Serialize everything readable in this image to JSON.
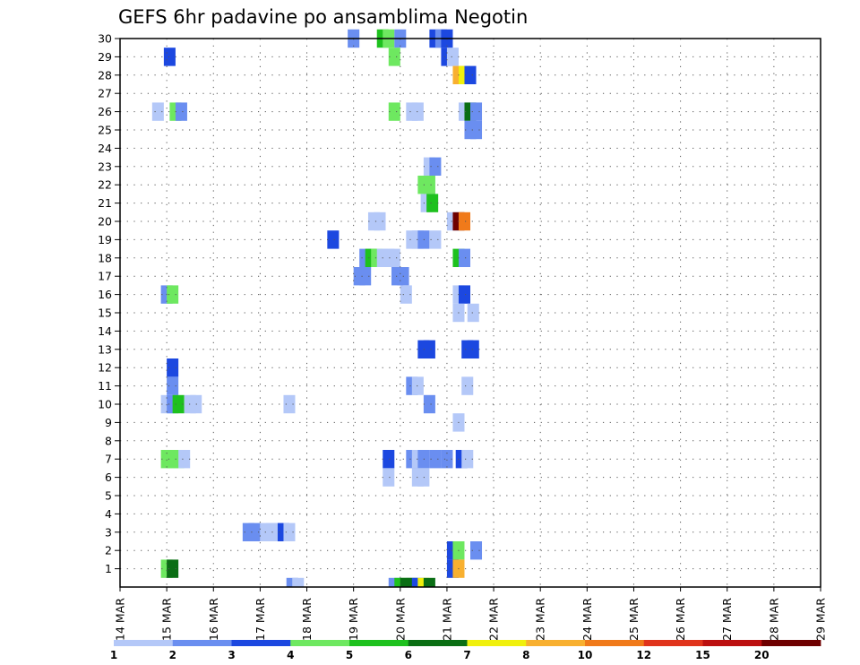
{
  "chart_data": {
    "type": "heatmap",
    "title": "GEFS 6hr padavine po ansamblima Negotin",
    "xlabel": "",
    "ylabel": "",
    "x_tick_labels": [
      "14 MAR",
      "15 MAR",
      "16 MAR",
      "17 MAR",
      "18 MAR",
      "19 MAR",
      "20 MAR",
      "21 MAR",
      "22 MAR",
      "23 MAR",
      "24 MAR",
      "25 MAR",
      "26 MAR",
      "27 MAR",
      "28 MAR",
      "29 MAR"
    ],
    "xlim_days": [
      0,
      15
    ],
    "y_tick_labels": [
      "1",
      "2",
      "3",
      "4",
      "5",
      "6",
      "7",
      "8",
      "9",
      "10",
      "11",
      "12",
      "13",
      "14",
      "15",
      "16",
      "17",
      "18",
      "19",
      "20",
      "21",
      "22",
      "23",
      "24",
      "25",
      "26",
      "27",
      "28",
      "29",
      "30"
    ],
    "ylim_members": [
      0,
      30
    ],
    "time_step_hours": 6,
    "grid": true,
    "legend_placement": "bottom",
    "legend_labels": [
      "1",
      "2",
      "3",
      "4",
      "5",
      "6",
      "7",
      "8",
      "10",
      "12",
      "15",
      "20"
    ],
    "color_levels": [
      {
        "level": 1,
        "color": "#b4c8f8"
      },
      {
        "level": 2,
        "color": "#6a8ef0"
      },
      {
        "level": 3,
        "color": "#1c48e0"
      },
      {
        "level": 4,
        "color": "#6ee860"
      },
      {
        "level": 5,
        "color": "#1ec11e"
      },
      {
        "level": 6,
        "color": "#0a6e14"
      },
      {
        "level": 7,
        "color": "#f0f00c"
      },
      {
        "level": 8,
        "color": "#f8b030"
      },
      {
        "level": 9,
        "color": "#f07a1a"
      },
      {
        "level": 10,
        "color": "#e0341c"
      },
      {
        "level": 11,
        "color": "#bc1010"
      },
      {
        "level": 12,
        "color": "#6e0000"
      }
    ],
    "cells": [
      {
        "m": 30,
        "t": [
          19.5
        ],
        "c": 2
      },
      {
        "m": 30,
        "t": [
          22
        ],
        "c": 5
      },
      {
        "m": 30,
        "t": [
          22.5
        ],
        "c": 4
      },
      {
        "m": 30,
        "t": [
          23.5
        ],
        "c": 2
      },
      {
        "m": 30,
        "t": [
          26.5
        ],
        "c": 3
      },
      {
        "m": 30,
        "t": [
          27
        ],
        "c": 2
      },
      {
        "m": 30,
        "t": [
          27.5
        ],
        "c": 3
      },
      {
        "m": 29,
        "t": [
          3.75
        ],
        "c": 3
      },
      {
        "m": 29,
        "t": [
          23
        ],
        "c": 4
      },
      {
        "m": 29,
        "t": [
          27.5
        ],
        "c": 3
      },
      {
        "m": 29,
        "t": [
          28
        ],
        "c": 1
      },
      {
        "m": 28,
        "t": [
          28.5
        ],
        "c": 8
      },
      {
        "m": 28,
        "t": [
          29
        ],
        "c": 7
      },
      {
        "m": 28,
        "t": [
          29.5
        ],
        "c": 3
      },
      {
        "m": 26,
        "t": [
          2.75
        ],
        "c": 1
      },
      {
        "m": 26,
        "t": [
          4.25
        ],
        "c": 4
      },
      {
        "m": 26,
        "t": [
          4.75
        ],
        "c": 2
      },
      {
        "m": 26,
        "t": [
          23
        ],
        "c": 4
      },
      {
        "m": 26,
        "t": [
          24.5,
          25
        ],
        "c": 1
      },
      {
        "m": 26,
        "t": [
          29
        ],
        "c": 1
      },
      {
        "m": 26,
        "t": [
          29.5
        ],
        "c": 6
      },
      {
        "m": 26,
        "t": [
          30
        ],
        "c": 2
      },
      {
        "m": 25,
        "t": [
          29.5,
          30
        ],
        "c": 2
      },
      {
        "m": 23,
        "t": [
          26
        ],
        "c": 1
      },
      {
        "m": 23,
        "t": [
          26.5
        ],
        "c": 2
      },
      {
        "m": 22,
        "t": [
          26
        ],
        "c": 1
      },
      {
        "m": 22,
        "t": [
          25.5,
          26
        ],
        "c": 4
      },
      {
        "m": 21,
        "t": [
          25.75
        ],
        "c": 1
      },
      {
        "m": 21,
        "t": [
          26.25
        ],
        "c": 5
      },
      {
        "m": 20,
        "t": [
          21.25,
          21.75
        ],
        "c": 1
      },
      {
        "m": 20,
        "t": [
          28
        ],
        "c": 1
      },
      {
        "m": 20,
        "t": [
          28.5
        ],
        "c": 12
      },
      {
        "m": 20,
        "t": [
          29
        ],
        "c": 9
      },
      {
        "m": 19,
        "t": [
          17.75
        ],
        "c": 3
      },
      {
        "m": 19,
        "t": [
          24.5,
          25
        ],
        "c": 1
      },
      {
        "m": 19,
        "t": [
          25.5
        ],
        "c": 2
      },
      {
        "m": 19,
        "t": [
          26.5
        ],
        "c": 1
      },
      {
        "m": 18,
        "t": [
          20.5
        ],
        "c": 2
      },
      {
        "m": 18,
        "t": [
          21
        ],
        "c": 5
      },
      {
        "m": 18,
        "t": [
          21.5
        ],
        "c": 4
      },
      {
        "m": 18,
        "t": [
          22,
          22.5,
          23
        ],
        "c": 1
      },
      {
        "m": 18,
        "t": [
          28.5
        ],
        "c": 5
      },
      {
        "m": 18,
        "t": [
          29
        ],
        "c": 2
      },
      {
        "m": 17,
        "t": [
          20,
          20.5
        ],
        "c": 2
      },
      {
        "m": 17,
        "t": [
          23.25,
          23.75
        ],
        "c": 2
      },
      {
        "m": 16,
        "t": [
          3.5
        ],
        "c": 2
      },
      {
        "m": 16,
        "t": [
          4
        ],
        "c": 4
      },
      {
        "m": 16,
        "t": [
          24
        ],
        "c": 1
      },
      {
        "m": 16,
        "t": [
          28.5
        ],
        "c": 1
      },
      {
        "m": 16,
        "t": [
          29
        ],
        "c": 3
      },
      {
        "m": 15,
        "t": [
          28.5
        ],
        "c": 1
      },
      {
        "m": 15,
        "t": [
          29.75
        ],
        "c": 1
      },
      {
        "m": 13,
        "t": [
          25.5,
          26
        ],
        "c": 3
      },
      {
        "m": 13,
        "t": [
          29.25,
          29.75
        ],
        "c": 3
      },
      {
        "m": 12,
        "t": [
          4
        ],
        "c": 3
      },
      {
        "m": 11,
        "t": [
          4
        ],
        "c": 2
      },
      {
        "m": 11,
        "t": [
          24.5
        ],
        "c": 2
      },
      {
        "m": 11,
        "t": [
          25
        ],
        "c": 1
      },
      {
        "m": 11,
        "t": [
          29.25
        ],
        "c": 1
      },
      {
        "m": 10,
        "t": [
          3.5
        ],
        "c": 1
      },
      {
        "m": 10,
        "t": [
          4
        ],
        "c": 2
      },
      {
        "m": 10,
        "t": [
          4.5
        ],
        "c": 5
      },
      {
        "m": 10,
        "t": [
          5.5,
          6
        ],
        "c": 1
      },
      {
        "m": 10,
        "t": [
          14
        ],
        "c": 1
      },
      {
        "m": 10,
        "t": [
          26
        ],
        "c": 2
      },
      {
        "m": 9,
        "t": [
          28.5
        ],
        "c": 1
      },
      {
        "m": 7,
        "t": [
          3.5,
          4,
          4.5
        ],
        "c": 4
      },
      {
        "m": 7,
        "t": [
          5
        ],
        "c": 1
      },
      {
        "m": 7,
        "t": [
          22.5
        ],
        "c": 3
      },
      {
        "m": 7,
        "t": [
          24.5
        ],
        "c": 2
      },
      {
        "m": 7,
        "t": [
          25
        ],
        "c": 1
      },
      {
        "m": 7,
        "t": [
          25.5
        ],
        "c": 2
      },
      {
        "m": 7,
        "t": [
          26.5
        ],
        "c": 2
      },
      {
        "m": 7,
        "t": [
          27.5
        ],
        "c": 2
      },
      {
        "m": 7,
        "t": [
          28.75
        ],
        "c": 3
      },
      {
        "m": 7,
        "t": [
          29.25
        ],
        "c": 1
      },
      {
        "m": 6,
        "t": [
          22.5
        ],
        "c": 1
      },
      {
        "m": 6,
        "t": [
          25,
          25.5
        ],
        "c": 1
      },
      {
        "m": 3,
        "t": [
          10.5,
          11
        ],
        "c": 2
      },
      {
        "m": 3,
        "t": [
          12,
          12.5,
          13
        ],
        "c": 1
      },
      {
        "m": 3,
        "t": [
          13.5
        ],
        "c": 3
      },
      {
        "m": 3,
        "t": [
          14
        ],
        "c": 1
      },
      {
        "m": 2,
        "t": [
          28
        ],
        "c": 3
      },
      {
        "m": 2,
        "t": [
          28.5
        ],
        "c": 4
      },
      {
        "m": 2,
        "t": [
          30
        ],
        "c": 2
      },
      {
        "m": 1,
        "t": [
          3.5
        ],
        "c": 4
      },
      {
        "m": 1,
        "t": [
          4
        ],
        "c": 6
      },
      {
        "m": 1,
        "t": [
          28
        ],
        "c": 3
      },
      {
        "m": 1,
        "t": [
          28.5
        ],
        "c": 8
      }
    ],
    "bottom_row_cells": [
      {
        "t": 14.25,
        "c": 2
      },
      {
        "t": 14.75,
        "c": 1
      },
      {
        "t": 23,
        "c": 2
      },
      {
        "t": 23.5,
        "c": 5
      },
      {
        "t": 24,
        "c": 6
      },
      {
        "t": 24.5,
        "c": 6
      },
      {
        "t": 25,
        "c": 3
      },
      {
        "t": 25.5,
        "c": 7
      },
      {
        "t": 26,
        "c": 6
      }
    ]
  }
}
